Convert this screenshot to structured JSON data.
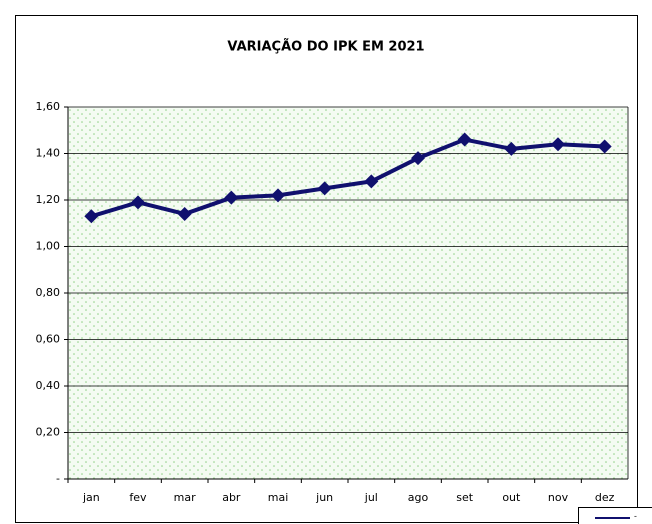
{
  "chart_data": {
    "type": "line",
    "title": "VARIAÇÃO DO IPK EM 2021",
    "categories": [
      "jan",
      "fev",
      "mar",
      "abr",
      "mai",
      "jun",
      "jul",
      "ago",
      "set",
      "out",
      "nov",
      "dez"
    ],
    "series": [
      {
        "name": "-",
        "color": "#10106e",
        "values": [
          1.13,
          1.19,
          1.14,
          1.21,
          1.22,
          1.25,
          1.28,
          1.38,
          1.46,
          1.42,
          1.44,
          1.43
        ]
      }
    ],
    "ylim": [
      0,
      1.6
    ],
    "yticks": [
      {
        "value": 0,
        "label": "-"
      },
      {
        "value": 0.2,
        "label": "0,20"
      },
      {
        "value": 0.4,
        "label": "0,40"
      },
      {
        "value": 0.6,
        "label": "0,60"
      },
      {
        "value": 0.8,
        "label": "0,80"
      },
      {
        "value": 1.0,
        "label": "1,00"
      },
      {
        "value": 1.2,
        "label": "1,20"
      },
      {
        "value": 1.4,
        "label": "1,40"
      },
      {
        "value": 1.6,
        "label": "1,60"
      }
    ],
    "grid": true
  }
}
